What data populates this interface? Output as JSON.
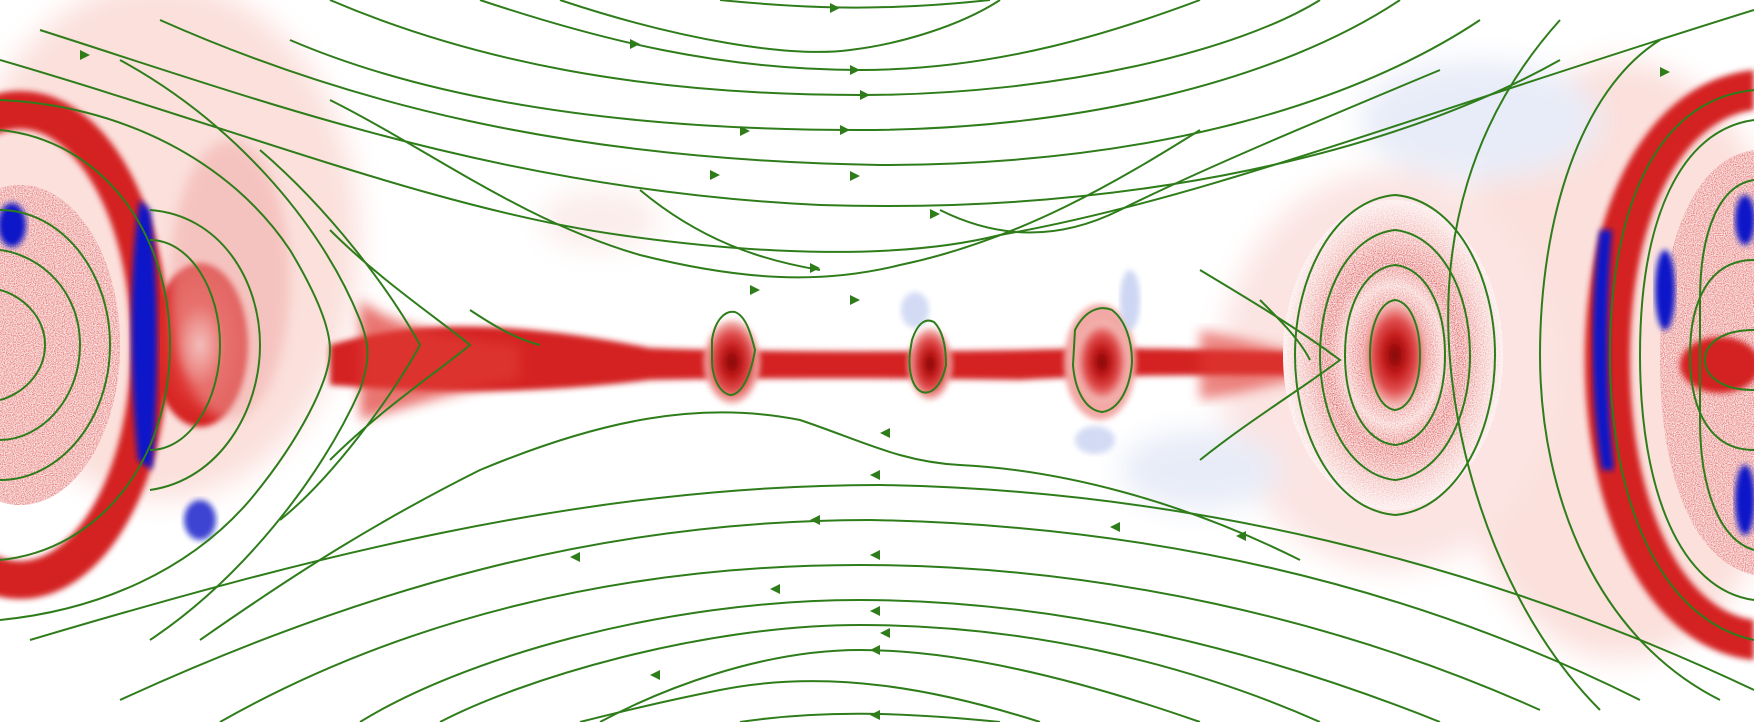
{
  "figure": {
    "kind": "magnetic-reconnection field map with plasmoids",
    "colors": {
      "background": "#ffffff",
      "positive": "#d42020",
      "positive_dark": "#8a0a0a",
      "positive_light": "#f4b8b4",
      "negative": "#1018c8",
      "negative_light": "#c8d2f2",
      "field_lines": "#2e7d1a"
    },
    "field_line_icon": "arrow-icon",
    "structures": [
      "current-sheet",
      "left-island",
      "right-island",
      "plasmoid-1",
      "plasmoid-2",
      "plasmoid-3",
      "plasmoid-4"
    ]
  }
}
